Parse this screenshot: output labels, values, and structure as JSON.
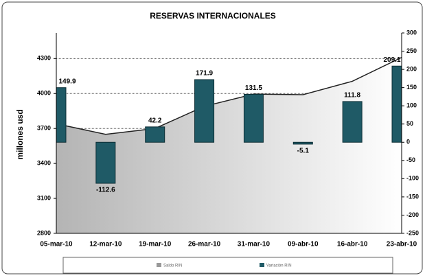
{
  "chart_data": {
    "type": "area_bar",
    "title": "RESERVAS INTERNACIONALES",
    "y_label": "millones usd",
    "x": [
      "05-mar-10",
      "12-mar-10",
      "19-mar-10",
      "26-mar-10",
      "31-mar-10",
      "09-abr-10",
      "16-abr-10",
      "23-abr-10"
    ],
    "series": [
      {
        "name": "Saldo RIN",
        "color": "#b0b0b0",
        "axis": "y",
        "kind": "area",
        "values": [
          3740,
          3650,
          3700,
          3890,
          3995,
          3990,
          4105,
          4310
        ]
      },
      {
        "name": "Variación RIN",
        "color": "#1f5a66",
        "axis": "y2",
        "kind": "bar",
        "values": [
          149.9,
          -112.6,
          42.2,
          171.9,
          131.5,
          -5.1,
          111.8,
          209.1
        ]
      }
    ],
    "ylim": [
      2800,
      4520
    ],
    "yticks": [
      2800,
      3100,
      3400,
      3700,
      4000,
      4300
    ],
    "y2lim": [
      -250,
      300
    ],
    "y2ticks": [
      -250,
      -200,
      -150,
      -100,
      -50,
      0,
      50,
      100,
      150,
      200,
      250,
      300
    ],
    "grid": true
  }
}
